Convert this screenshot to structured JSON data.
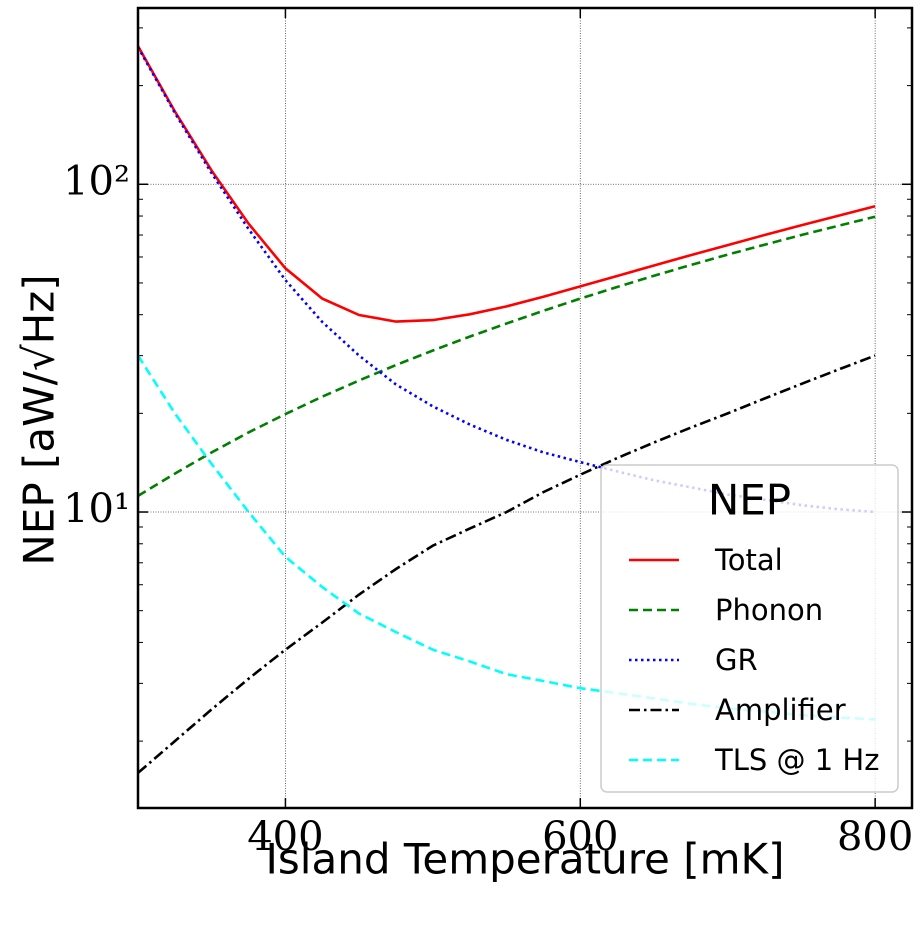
{
  "chart_data": {
    "type": "line",
    "xlabel": "Island Temperature [mK]",
    "ylabel": "NEP [aW/√Hz]",
    "x": [
      300,
      325,
      350,
      375,
      400,
      425,
      450,
      475,
      500,
      525,
      550,
      575,
      600,
      625,
      650,
      675,
      700,
      725,
      750,
      775,
      800
    ],
    "series": [
      {
        "name": "Total",
        "color": "#ff0000",
        "dash": "solid",
        "values": [
          264,
          166.7,
          110,
          75.8,
          55.4,
          44.8,
          39.9,
          38.1,
          38.5,
          40.1,
          42.4,
          45.4,
          48.8,
          52.5,
          56.5,
          60.8,
          65.2,
          70.0,
          75.0,
          80.2,
          85.7
        ]
      },
      {
        "name": "Phonon",
        "color": "#008000",
        "dash": "dashed",
        "values": [
          11.2,
          13.1,
          15.2,
          17.5,
          19.9,
          22.5,
          25.2,
          28.1,
          31.1,
          34.3,
          37.6,
          41.1,
          44.8,
          48.6,
          52.6,
          56.7,
          61.0,
          65.4,
          70.0,
          74.7,
          79.6
        ]
      },
      {
        "name": "GR",
        "color": "#0000ff",
        "dash": "dotted",
        "values": [
          262,
          165,
          108,
          73,
          51,
          38,
          30,
          24.5,
          21,
          18.5,
          16.6,
          15.2,
          14.2,
          13.3,
          12.5,
          11.9,
          11.3,
          10.9,
          10.5,
          10.2,
          10.0
        ]
      },
      {
        "name": "Amplifier",
        "color": "#000000",
        "dash": "dashdot",
        "values": [
          1.6,
          2.0,
          2.5,
          3.1,
          3.8,
          4.6,
          5.6,
          6.7,
          7.9,
          8.9,
          10.0,
          11.5,
          13.0,
          14.6,
          16.3,
          18.1,
          20.0,
          22.2,
          24.6,
          27.2,
          30.0
        ]
      },
      {
        "name": "TLS @ 1 Hz",
        "color": "#00ffff",
        "dash": "dashed",
        "values": [
          30,
          20,
          14,
          10,
          7.3,
          5.9,
          4.9,
          4.3,
          3.8,
          3.5,
          3.2,
          3.05,
          2.9,
          2.8,
          2.7,
          2.6,
          2.52,
          2.46,
          2.4,
          2.36,
          2.33
        ]
      }
    ],
    "xlim": [
      300,
      825
    ],
    "xticks": [
      400,
      600,
      800
    ],
    "ylim": [
      1.25,
      345
    ],
    "ylog": true,
    "yticks": [
      {
        "value": 10,
        "label": "10¹"
      },
      {
        "value": 100,
        "label": "10²"
      }
    ],
    "yminorticks": [
      2,
      3,
      4,
      5,
      6,
      7,
      8,
      9,
      20,
      30,
      40,
      50,
      60,
      70,
      80,
      90,
      200,
      300
    ],
    "grid": true,
    "legend_title": "NEP",
    "legend_loc": "lower right"
  }
}
